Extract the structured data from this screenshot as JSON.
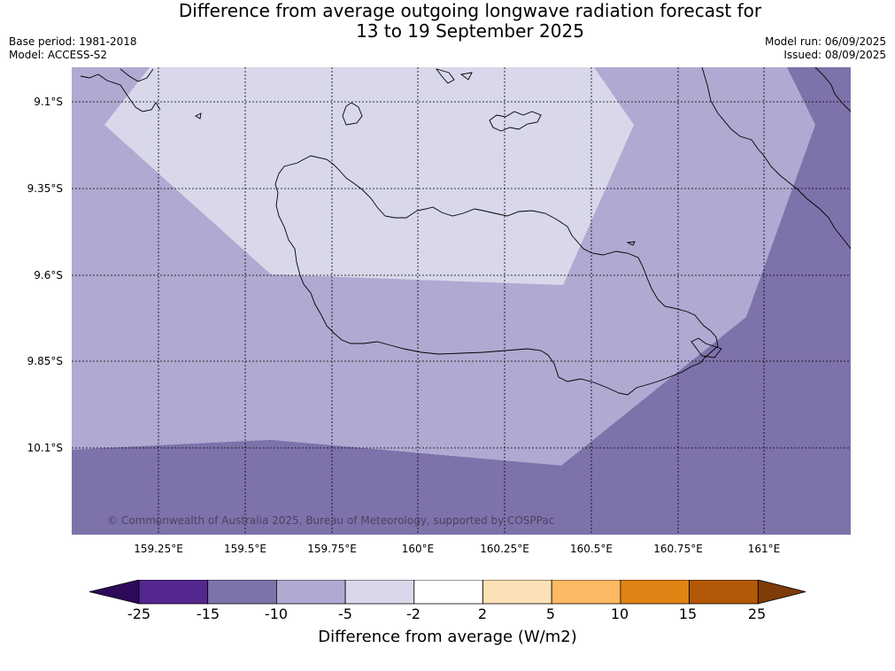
{
  "title_line1": "Difference from average outgoing longwave radiation forecast for",
  "title_line2": "13 to 19 September 2025",
  "base_period": "Base period: 1981-2018",
  "model": "Model: ACCESS-S2",
  "model_run": "Model run: 06/09/2025",
  "issued": "Issued: 08/09/2025",
  "copyright": "© Commonwealth of Australia 2025, Bureau of Meteorology, supported by COSPPac",
  "latitudes": [
    "9.1°S",
    "9.35°S",
    "9.6°S",
    "9.85°S",
    "10.1°S"
  ],
  "longitudes": [
    "159.25°E",
    "159.5°E",
    "159.75°E",
    "160°E",
    "160.25°E",
    "160.5°E",
    "160.75°E",
    "161°E"
  ],
  "colorbar": {
    "title": "Difference from average (W/m2)",
    "ticks": [
      "-25",
      "-15",
      "-10",
      "-5",
      "-2",
      "2",
      "5",
      "10",
      "15",
      "25"
    ],
    "colors": [
      "#2d0a5a",
      "#54278f",
      "#7e72ab",
      "#b0a9d1",
      "#d8d8ea",
      "#ffffff",
      "#fee0b6",
      "#fdb863",
      "#e08214",
      "#b35806",
      "#7f3b08"
    ]
  },
  "zones": {
    "light": "#d8d8ea",
    "medium": "#b0a9d1",
    "dark": "#7e72ab"
  }
}
